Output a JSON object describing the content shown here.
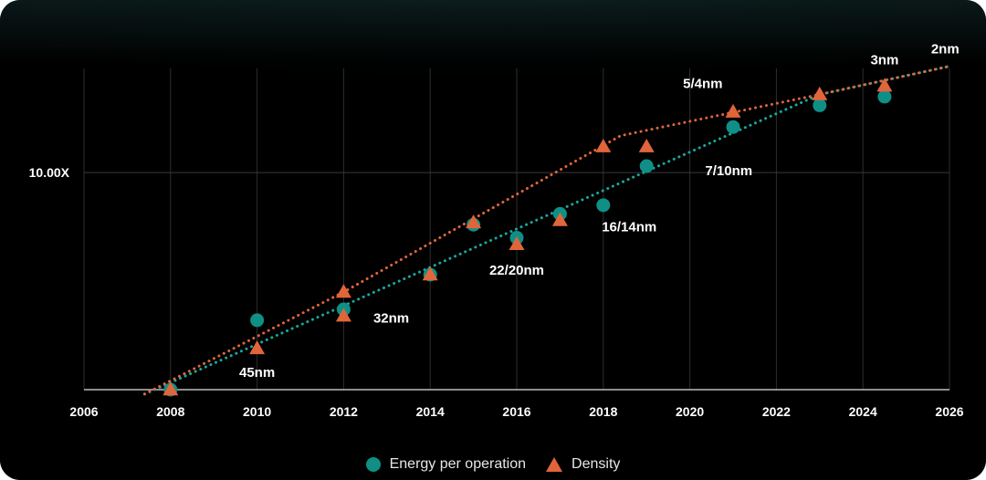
{
  "chart_data": {
    "type": "scatter",
    "title": "",
    "xlabel": "",
    "ylabel": "",
    "xlim": [
      2006,
      2026
    ],
    "log_ylim": [
      0,
      1.48
    ],
    "x_ticks": [
      "2006",
      "2008",
      "2010",
      "2012",
      "2014",
      "2016",
      "2018",
      "2020",
      "2022",
      "2024",
      "2026"
    ],
    "y_tick_label": "10.00X",
    "y_tick_value": 1.0,
    "series": [
      {
        "name": "Energy per operation",
        "marker": "circle",
        "color": "#0f8f86",
        "points": [
          [
            2008,
            0.0
          ],
          [
            2010,
            0.32
          ],
          [
            2012,
            0.37
          ],
          [
            2014,
            0.53
          ],
          [
            2015,
            0.76
          ],
          [
            2016,
            0.7
          ],
          [
            2017,
            0.81
          ],
          [
            2018,
            0.85
          ],
          [
            2019,
            1.03
          ],
          [
            2021,
            1.21
          ],
          [
            2023,
            1.31
          ],
          [
            2024.5,
            1.35
          ]
        ]
      },
      {
        "name": "Density",
        "marker": "triangle",
        "color": "#e0653a",
        "points": [
          [
            2008,
            0.0
          ],
          [
            2010,
            0.19
          ],
          [
            2012,
            0.34
          ],
          [
            2012,
            0.45
          ],
          [
            2014,
            0.53
          ],
          [
            2015,
            0.77
          ],
          [
            2016,
            0.67
          ],
          [
            2017,
            0.78
          ],
          [
            2018,
            1.12
          ],
          [
            2019,
            1.12
          ],
          [
            2021,
            1.28
          ],
          [
            2023,
            1.36
          ],
          [
            2024.5,
            1.4
          ]
        ]
      }
    ],
    "trend_lines": [
      {
        "name": "Energy trend",
        "color": "#1aa79c",
        "points": [
          [
            2007.4,
            -0.02
          ],
          [
            2023,
            1.36
          ],
          [
            2026,
            1.49
          ]
        ]
      },
      {
        "name": "Density trend",
        "color": "#e0653a",
        "points": [
          [
            2007.4,
            -0.02
          ],
          [
            2012,
            0.45
          ],
          [
            2018.4,
            1.17
          ],
          [
            2023,
            1.36
          ],
          [
            2026,
            1.49
          ]
        ]
      }
    ],
    "annotations": [
      {
        "text": "45nm",
        "x": 2010,
        "y": 0.08
      },
      {
        "text": "32nm",
        "x": 2013.1,
        "y": 0.33
      },
      {
        "text": "22/20nm",
        "x": 2016,
        "y": 0.55
      },
      {
        "text": "16/14nm",
        "x": 2018.6,
        "y": 0.75
      },
      {
        "text": "7/10nm",
        "x": 2020.9,
        "y": 1.01
      },
      {
        "text": "5/4nm",
        "x": 2020.3,
        "y": 1.41
      },
      {
        "text": "3nm",
        "x": 2024.5,
        "y": 1.52
      },
      {
        "text": "2nm",
        "x": 2025.9,
        "y": 1.57
      }
    ]
  },
  "legend": {
    "energy_label": "Energy per operation",
    "density_label": "Density",
    "energy_color": "#0f8f86",
    "density_color": "#e0653a"
  }
}
